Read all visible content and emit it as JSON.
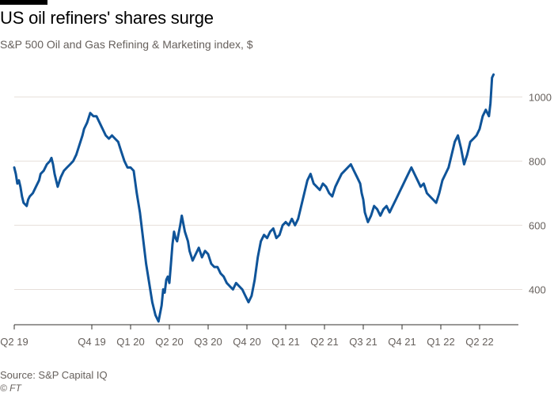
{
  "header": {
    "title": "US oil refiners' shares surge",
    "subtitle": "S&P 500 Oil and Gas Refining & Marketing index, $"
  },
  "footer": {
    "source": "Source: S&P Capital IQ",
    "credit": "© FT"
  },
  "colors": {
    "line": "#0f5499",
    "grid": "#e6dfd9",
    "axis": "#33302e",
    "text": "#66605c"
  },
  "chart_data": {
    "type": "line",
    "title": "US oil refiners' shares surge",
    "subtitle": "S&P 500 Oil and Gas Refining & Marketing index, $",
    "ylim": [
      290,
      1080
    ],
    "xlim": [
      2019.25,
      2022.5
    ],
    "y_ticks": [
      400,
      600,
      800,
      1000
    ],
    "x_ticks": [
      {
        "label": "Q2 19",
        "x": 2019.25
      },
      {
        "label": "Q4 19",
        "x": 2019.75
      },
      {
        "label": "Q1 20",
        "x": 2020.0
      },
      {
        "label": "Q2 20",
        "x": 2020.25
      },
      {
        "label": "Q3 20",
        "x": 2020.5
      },
      {
        "label": "Q4 20",
        "x": 2020.75
      },
      {
        "label": "Q1 21",
        "x": 2021.0
      },
      {
        "label": "Q2 21",
        "x": 2021.25
      },
      {
        "label": "Q3 21",
        "x": 2021.5
      },
      {
        "label": "Q4 21",
        "x": 2021.75
      },
      {
        "label": "Q1 22",
        "x": 2022.0
      },
      {
        "label": "Q2 22",
        "x": 2022.25
      }
    ],
    "grid": true,
    "y_axis_side": "right",
    "series": [
      {
        "x": [
          2019.25,
          2019.26,
          2019.27,
          2019.28,
          2019.29,
          2019.3,
          2019.31,
          2019.33,
          2019.34,
          2019.35,
          2019.37,
          2019.39,
          2019.41,
          2019.42,
          2019.44,
          2019.46,
          2019.48,
          2019.49,
          2019.5,
          2019.51,
          2019.53,
          2019.55,
          2019.57,
          2019.59,
          2019.61,
          2019.63,
          2019.65,
          2019.67,
          2019.69,
          2019.7,
          2019.72,
          2019.74,
          2019.76,
          2019.78,
          2019.8,
          2019.82,
          2019.84,
          2019.86,
          2019.88,
          2019.9,
          2019.92,
          2019.94,
          2019.96,
          2019.98,
          2020.0,
          2020.02,
          2020.04,
          2020.06,
          2020.08,
          2020.1,
          2020.12,
          2020.14,
          2020.16,
          2020.18,
          2020.2,
          2020.21,
          2020.22,
          2020.23,
          2020.24,
          2020.25,
          2020.26,
          2020.27,
          2020.28,
          2020.29,
          2020.3,
          2020.32,
          2020.33,
          2020.35,
          2020.37,
          2020.38,
          2020.4,
          2020.42,
          2020.44,
          2020.46,
          2020.48,
          2020.5,
          2020.52,
          2020.54,
          2020.56,
          2020.58,
          2020.6,
          2020.62,
          2020.64,
          2020.66,
          2020.68,
          2020.7,
          2020.72,
          2020.74,
          2020.76,
          2020.78,
          2020.8,
          2020.82,
          2020.84,
          2020.86,
          2020.88,
          2020.9,
          2020.92,
          2020.94,
          2020.96,
          2020.98,
          2021.0,
          2021.02,
          2021.04,
          2021.06,
          2021.08,
          2021.1,
          2021.12,
          2021.14,
          2021.16,
          2021.18,
          2021.2,
          2021.22,
          2021.24,
          2021.26,
          2021.28,
          2021.3,
          2021.32,
          2021.34,
          2021.36,
          2021.38,
          2021.4,
          2021.42,
          2021.44,
          2021.46,
          2021.48,
          2021.49,
          2021.5,
          2021.51,
          2021.53,
          2021.55,
          2021.57,
          2021.59,
          2021.61,
          2021.63,
          2021.65,
          2021.67,
          2021.69,
          2021.71,
          2021.73,
          2021.75,
          2021.77,
          2021.79,
          2021.81,
          2021.83,
          2021.85,
          2021.87,
          2021.89,
          2021.91,
          2021.93,
          2021.95,
          2021.97,
          2021.99,
          2022.01,
          2022.03,
          2022.05,
          2022.07,
          2022.09,
          2022.11,
          2022.13,
          2022.15,
          2022.17,
          2022.19,
          2022.21,
          2022.23,
          2022.25,
          2022.27,
          2022.29,
          2022.31,
          2022.32,
          2022.33,
          2022.34
        ],
        "y": [
          780,
          760,
          730,
          740,
          720,
          690,
          670,
          660,
          680,
          690,
          700,
          720,
          740,
          760,
          770,
          790,
          800,
          810,
          790,
          760,
          720,
          750,
          770,
          780,
          790,
          800,
          820,
          850,
          880,
          900,
          920,
          950,
          940,
          940,
          920,
          900,
          880,
          870,
          880,
          870,
          860,
          830,
          800,
          780,
          780,
          770,
          700,
          640,
          560,
          480,
          420,
          360,
          320,
          300,
          350,
          400,
          390,
          430,
          440,
          420,
          480,
          540,
          580,
          560,
          550,
          600,
          630,
          580,
          550,
          520,
          490,
          510,
          530,
          500,
          520,
          510,
          480,
          470,
          470,
          450,
          440,
          420,
          410,
          400,
          420,
          410,
          400,
          380,
          360,
          380,
          430,
          500,
          550,
          570,
          560,
          580,
          590,
          560,
          570,
          600,
          610,
          600,
          620,
          600,
          620,
          660,
          700,
          740,
          760,
          730,
          720,
          710,
          730,
          720,
          700,
          690,
          720,
          740,
          760,
          770,
          780,
          790,
          770,
          750,
          730,
          700,
          680,
          640,
          610,
          630,
          660,
          650,
          630,
          650,
          660,
          640,
          660,
          680,
          700,
          720,
          740,
          760,
          780,
          760,
          740,
          720,
          730,
          700,
          690,
          680,
          670,
          700,
          740,
          760,
          780,
          820,
          860,
          880,
          840,
          790,
          820,
          860,
          870,
          880,
          900,
          940,
          960,
          940,
          980,
          1060,
          1070
        ]
      }
    ]
  }
}
